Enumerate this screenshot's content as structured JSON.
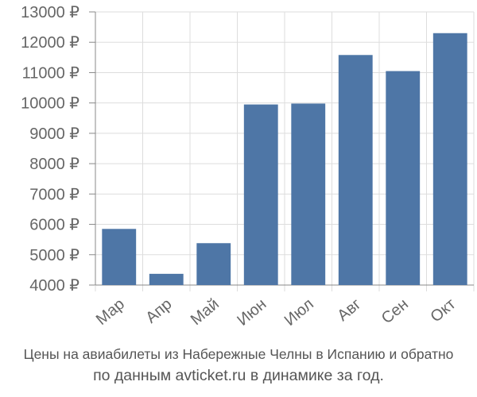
{
  "chart_data": {
    "type": "bar",
    "categories": [
      "Мар",
      "Апр",
      "Май",
      "Июн",
      "Июл",
      "Авг",
      "Сен",
      "Окт"
    ],
    "values": [
      5850,
      4370,
      5380,
      9950,
      9980,
      11580,
      11050,
      12300
    ],
    "currency_suffix": " ₽",
    "ylim": [
      4000,
      13000
    ],
    "yticks": [
      "4000 ₽",
      "5000 ₽",
      "6000 ₽",
      "7000 ₽",
      "8000 ₽",
      "9000 ₽",
      "10000 ₽",
      "11000 ₽",
      "12000 ₽",
      "13000 ₽"
    ],
    "grid": true,
    "bar_color": "#4e76a6",
    "grid_color": "#dddddd",
    "axis_color": "#888888"
  },
  "caption": {
    "line1": "Цены на авиабилеты из Набережные Челны в Испанию и обратно",
    "line2": "по данным avticket.ru в динамике за год."
  }
}
